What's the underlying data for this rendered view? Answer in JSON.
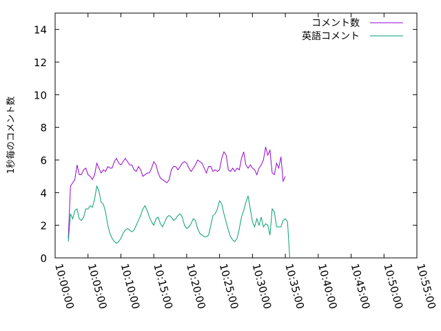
{
  "chart_data": {
    "type": "line",
    "title": "",
    "xlabel": "",
    "ylabel": "1秒毎のコメント数",
    "xlim": [
      "10:00:00",
      "10:55:00"
    ],
    "ylim": [
      0,
      15
    ],
    "xticks": [
      "10:00:00",
      "10:05:00",
      "10:10:00",
      "10:15:00",
      "10:20:00",
      "10:25:00",
      "10:30:00",
      "10:35:00",
      "10:40:00",
      "10:45:00",
      "10:50:00",
      "10:55:00"
    ],
    "yticks": [
      0,
      2,
      4,
      6,
      8,
      10,
      12,
      14
    ],
    "grid": false,
    "legend": "top-right",
    "x_start": "10:02:00",
    "x_step": "20s",
    "series": [
      {
        "name": "コメント数",
        "color": "#9400d3",
        "values": [
          1.2,
          4.4,
          4.6,
          4.8,
          5.7,
          5.1,
          5.1,
          5.4,
          5.5,
          5.1,
          5.0,
          4.8,
          5.1,
          5.8,
          5.5,
          5.2,
          5.4,
          5.3,
          5.6,
          5.5,
          5.5,
          5.9,
          6.1,
          5.8,
          5.7,
          5.9,
          6.1,
          5.9,
          5.7,
          5.7,
          5.4,
          5.3,
          5.6,
          5.4,
          5.0,
          5.1,
          5.2,
          5.2,
          5.5,
          5.9,
          5.7,
          5.2,
          4.9,
          4.8,
          4.7,
          4.6,
          4.8,
          5.4,
          5.6,
          5.6,
          5.4,
          5.6,
          5.8,
          5.9,
          5.8,
          5.5,
          5.3,
          5.5,
          5.7,
          6.0,
          5.9,
          5.8,
          5.5,
          5.2,
          5.6,
          5.6,
          5.3,
          5.4,
          5.3,
          5.4,
          6.1,
          6.5,
          6.3,
          5.4,
          5.3,
          5.5,
          5.3,
          5.5,
          5.4,
          6.1,
          6.5,
          5.7,
          5.5,
          5.7,
          5.5,
          5.4,
          5.1,
          5.5,
          5.7,
          6.0,
          6.8,
          6.3,
          6.6,
          5.2,
          5.1,
          5.8,
          5.5,
          6.2,
          4.7,
          5.0
        ]
      },
      {
        "name": "英語コメント",
        "color": "#009e73",
        "values": [
          1.0,
          2.7,
          2.4,
          2.9,
          3.0,
          2.4,
          2.3,
          2.5,
          3.0,
          3.0,
          3.2,
          3.1,
          3.6,
          4.4,
          4.1,
          3.4,
          3.3,
          2.8,
          2.0,
          1.5,
          1.2,
          1.0,
          0.9,
          1.0,
          1.2,
          1.5,
          1.7,
          1.8,
          1.7,
          1.6,
          1.7,
          2.0,
          2.3,
          2.6,
          3.0,
          3.2,
          2.9,
          2.5,
          2.2,
          2.0,
          2.4,
          2.5,
          2.1,
          1.9,
          2.2,
          2.5,
          2.6,
          2.5,
          2.3,
          2.4,
          2.6,
          2.7,
          2.5,
          2.0,
          1.8,
          1.9,
          2.1,
          2.4,
          2.3,
          1.8,
          1.5,
          1.4,
          1.3,
          1.3,
          1.4,
          2.0,
          2.6,
          2.7,
          3.0,
          3.5,
          3.3,
          2.7,
          2.2,
          1.7,
          1.3,
          1.1,
          1.0,
          1.2,
          1.8,
          2.5,
          2.9,
          3.4,
          3.8,
          3.0,
          2.2,
          1.9,
          2.4,
          2.0,
          2.5,
          1.9,
          2.1,
          2.0,
          1.4,
          3.0,
          2.8,
          1.9,
          1.9,
          1.9,
          2.3,
          2.4,
          2.2,
          0.0
        ]
      }
    ]
  }
}
